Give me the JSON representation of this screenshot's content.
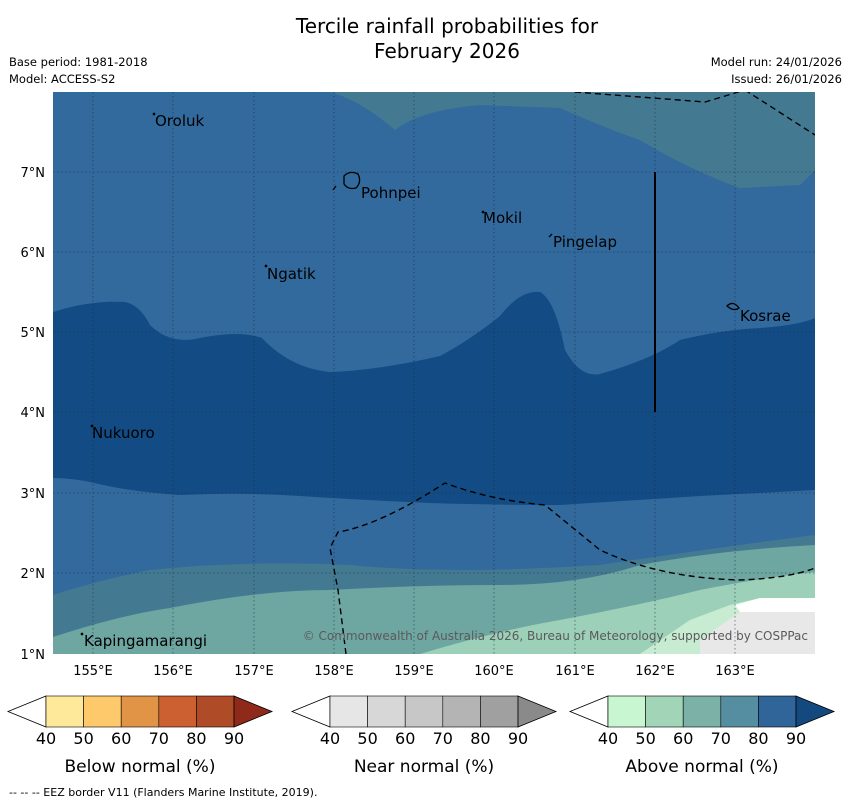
{
  "title_line1": "Tercile rainfall probabilities for",
  "title_line2": "February 2026",
  "base_period": "Base period: 1981-2018",
  "model": "Model: ACCESS-S2",
  "model_run": "Model run: 24/01/2026",
  "issued": "Issued: 26/01/2026",
  "copyright": "© Commonwealth of Australia 2026, Bureau of Meteorology, supported by COSPPac",
  "footer": "--  --  -- EEZ border V11 (Flanders Marine Institute, 2019).",
  "map": {
    "lon_labels": [
      "155°E",
      "156°E",
      "157°E",
      "158°E",
      "159°E",
      "160°E",
      "161°E",
      "162°E",
      "163°E"
    ],
    "lat_labels": [
      "1°N",
      "2°N",
      "3°N",
      "4°N",
      "5°N",
      "6°N",
      "7°N"
    ],
    "places": [
      "Oroluk",
      "Pohnpei",
      "Mokil",
      "Pingelap",
      "Ngatik",
      "Kosrae",
      "Nukuoro",
      "Kapingamarangi"
    ]
  },
  "colorbars": [
    {
      "label": "Below normal (%)",
      "ticks": [
        "40",
        "50",
        "60",
        "70",
        "80",
        "90"
      ],
      "colors": [
        "#ffffff",
        "#fee99a",
        "#fdc96a",
        "#e19346",
        "#cc6030",
        "#b04b28",
        "#8f2a1a"
      ]
    },
    {
      "label": "Near normal (%)",
      "ticks": [
        "40",
        "50",
        "60",
        "70",
        "80",
        "90"
      ],
      "colors": [
        "#ffffff",
        "#e6e6e6",
        "#d7d7d7",
        "#c7c7c7",
        "#b4b4b4",
        "#a0a0a0",
        "#8a8a8a"
      ]
    },
    {
      "label": "Above normal (%)",
      "ticks": [
        "40",
        "50",
        "60",
        "70",
        "80",
        "90"
      ],
      "colors": [
        "#ffffff",
        "#c8f6d0",
        "#a2d4b8",
        "#7cb1a7",
        "#558ea0",
        "#2f6598",
        "#144980"
      ]
    }
  ]
}
